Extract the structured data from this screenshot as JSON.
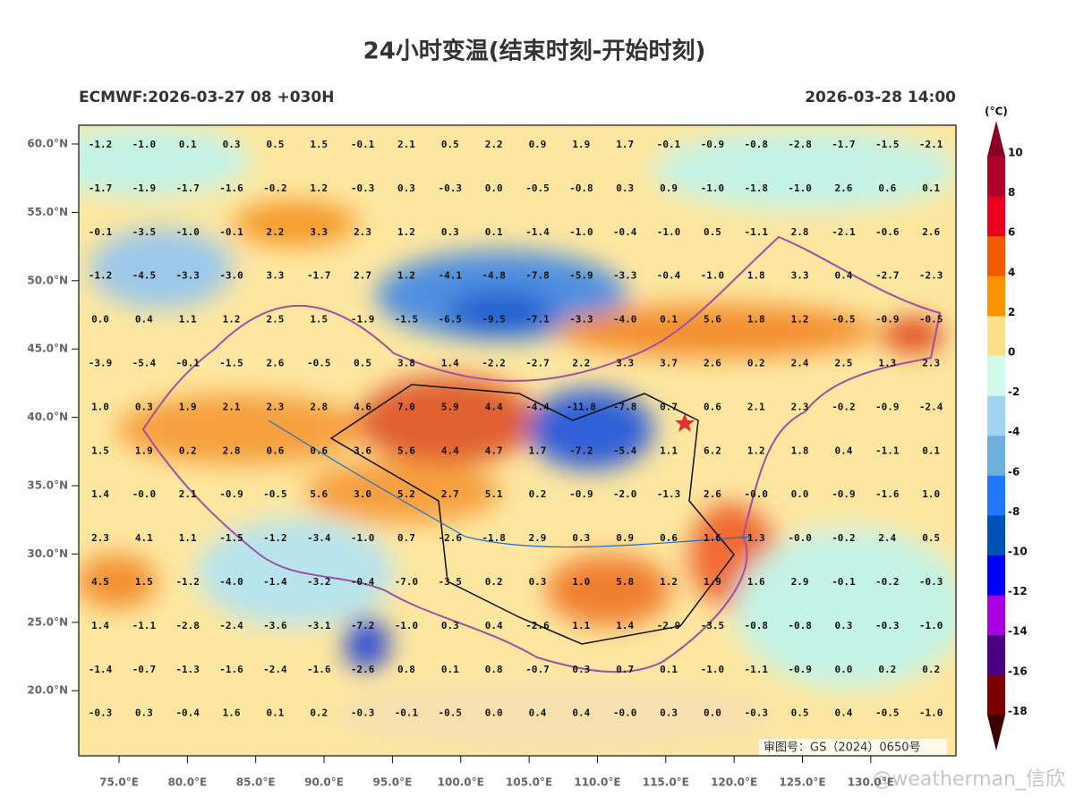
{
  "header": {
    "title": "24小时变温(结束时刻-开始时刻)",
    "run": "ECMWF:2026-03-27 08 +030H",
    "valid": "2026-03-28 14:00"
  },
  "map": {
    "lat_labels": [
      "60.0°N",
      "55.0°N",
      "50.0°N",
      "45.0°N",
      "40.0°N",
      "35.0°N",
      "30.0°N",
      "25.0°N",
      "20.0°N"
    ],
    "lon_labels": [
      "75.0°E",
      "80.0°E",
      "85.0°E",
      "90.0°E",
      "95.0°E",
      "100.0°E",
      "105.0°E",
      "110.0°E",
      "115.0°E",
      "120.0°E",
      "125.0°E",
      "130.0°E"
    ],
    "approval": "审图号：GS（2024）0650号",
    "watermark": "@weatherman_信欣",
    "grid": [
      [
        "-1.2",
        "-1.0",
        "0.1",
        "0.3",
        "0.5",
        "1.5",
        "-0.1",
        "2.1",
        "0.5",
        "2.2",
        "0.9",
        "1.9",
        "1.7",
        "-0.1",
        "-0.9",
        "-0.8",
        "-2.8",
        "-1.7",
        "-1.5",
        "-2.1"
      ],
      [
        "-1.7",
        "-1.9",
        "-1.7",
        "-1.6",
        "-0.2",
        "1.2",
        "-0.3",
        "0.3",
        "-0.3",
        "0.0",
        "-0.5",
        "-0.8",
        "0.3",
        "0.9",
        "-1.0",
        "-1.8",
        "-1.0",
        "2.6",
        "0.6",
        "0.1"
      ],
      [
        "-0.1",
        "-3.5",
        "-1.0",
        "-0.1",
        "2.2",
        "3.3",
        "2.3",
        "1.2",
        "0.3",
        "0.1",
        "-1.4",
        "-1.0",
        "-0.4",
        "-1.0",
        "0.5",
        "-1.1",
        "2.8",
        "-2.1",
        "-0.6",
        "2.6"
      ],
      [
        "-1.2",
        "-4.5",
        "-3.3",
        "-3.0",
        "3.3",
        "-1.7",
        "2.7",
        "1.2",
        "-4.1",
        "-4.8",
        "-7.8",
        "-5.9",
        "-3.3",
        "-0.4",
        "-1.0",
        "1.8",
        "3.3",
        "0.4",
        "-2.7",
        "-2.3"
      ],
      [
        "0.0",
        "0.4",
        "1.1",
        "1.2",
        "2.5",
        "1.5",
        "-1.9",
        "-1.5",
        "-6.5",
        "-9.5",
        "-7.1",
        "-3.3",
        "-4.0",
        "0.1",
        "5.6",
        "1.8",
        "1.2",
        "-0.5",
        "-0.9",
        "-0.5"
      ],
      [
        "-3.9",
        "-5.4",
        "-0.1",
        "-1.5",
        "2.6",
        "-0.5",
        "0.5",
        "3.8",
        "1.4",
        "-2.2",
        "-2.7",
        "2.2",
        "3.3",
        "3.7",
        "2.6",
        "0.2",
        "2.4",
        "2.5",
        "1.3",
        "2.3"
      ],
      [
        "1.0",
        "0.3",
        "1.9",
        "2.1",
        "2.3",
        "2.8",
        "4.6",
        "7.0",
        "5.9",
        "4.4",
        "-4.4",
        "-11.8",
        "-7.8",
        "0.7",
        "0.6",
        "2.1",
        "2.3",
        "-0.2",
        "-0.9",
        "-2.4"
      ],
      [
        "1.5",
        "1.9",
        "0.2",
        "2.8",
        "0.6",
        "0.6",
        "3.6",
        "5.6",
        "4.4",
        "4.7",
        "1.7",
        "-7.2",
        "-5.4",
        "1.1",
        "6.2",
        "1.2",
        "1.8",
        "0.4",
        "-1.1",
        "0.1"
      ],
      [
        "1.4",
        "-0.0",
        "2.1",
        "-0.9",
        "-0.5",
        "5.6",
        "3.0",
        "5.2",
        "2.7",
        "5.1",
        "0.2",
        "-0.9",
        "-2.0",
        "-1.3",
        "2.6",
        "-0.0",
        "0.0",
        "-0.9",
        "-1.6",
        "1.0"
      ],
      [
        "2.3",
        "4.1",
        "1.1",
        "-1.5",
        "-1.2",
        "-3.4",
        "-1.0",
        "0.7",
        "-2.6",
        "-1.8",
        "2.9",
        "0.3",
        "0.9",
        "0.6",
        "1.6",
        "1.3",
        "-0.0",
        "-0.2",
        "2.4",
        "0.5"
      ],
      [
        "4.5",
        "1.5",
        "-1.2",
        "-4.0",
        "-1.4",
        "-3.2",
        "-0.4",
        "-7.0",
        "-3.5",
        "0.2",
        "0.3",
        "1.0",
        "5.8",
        "1.2",
        "1.9",
        "1.6",
        "2.9",
        "-0.1",
        "-0.2",
        "-0.3"
      ],
      [
        "1.4",
        "-1.1",
        "-2.8",
        "-2.4",
        "-3.6",
        "-3.1",
        "-7.2",
        "-1.0",
        "0.3",
        "0.4",
        "-2.6",
        "1.1",
        "1.4",
        "-2.9",
        "-3.5",
        "-0.8",
        "-0.8",
        "0.3",
        "-0.3",
        "-1.0"
      ],
      [
        "-1.4",
        "-0.7",
        "-1.3",
        "-1.6",
        "-2.4",
        "-1.6",
        "-2.6",
        "0.8",
        "0.1",
        "0.8",
        "-0.7",
        "0.3",
        "0.7",
        "0.1",
        "-1.0",
        "-1.1",
        "-0.9",
        "0.0",
        "0.2",
        "0.2"
      ],
      [
        "-0.3",
        "0.3",
        "-0.4",
        "1.6",
        "0.1",
        "0.2",
        "-0.3",
        "-0.1",
        "-0.5",
        "0.0",
        "0.4",
        "0.4",
        "-0.0",
        "0.3",
        "0.0",
        "-0.3",
        "0.5",
        "0.4",
        "-0.5",
        "-1.0"
      ]
    ]
  },
  "colorbar": {
    "unit": "(°C)",
    "labels": [
      "10",
      "8",
      "6",
      "4",
      "2",
      "0",
      "-2",
      "-4",
      "-6",
      "-8",
      "-10",
      "-12",
      "-14",
      "-16",
      "-18"
    ],
    "colors": [
      "#b0002c",
      "#e6001e",
      "#f05a00",
      "#f99300",
      "#fde08a",
      "#d2fbec",
      "#a2d4f2",
      "#6eaedb",
      "#1f78ff",
      "#0050b8",
      "#0000ff",
      "#a800e0",
      "#4b0082",
      "#7a0000"
    ],
    "over_color": "#8b0024",
    "under_color": "#3d0000"
  }
}
